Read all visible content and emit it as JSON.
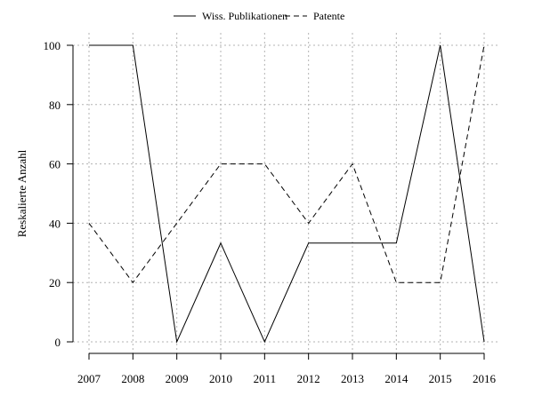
{
  "chart_data": {
    "type": "line",
    "title": "",
    "xlabel": "",
    "ylabel": "Reskalierte Anzahl",
    "categories": [
      "2007",
      "2008",
      "2009",
      "2010",
      "2011",
      "2012",
      "2013",
      "2014",
      "2015",
      "2016"
    ],
    "yticks": [
      "0",
      "20",
      "40",
      "60",
      "80",
      "100"
    ],
    "ylim": [
      0,
      100
    ],
    "grid": true,
    "legend_position": "top",
    "series": [
      {
        "name": "Wiss. Publikationen",
        "style": "solid",
        "color": "#000000",
        "values": [
          100,
          100,
          0,
          33.3,
          0,
          33.3,
          33.3,
          33.3,
          100,
          0
        ]
      },
      {
        "name": "Patente",
        "style": "dashed",
        "color": "#000000",
        "values": [
          40,
          20,
          40,
          60,
          60,
          40,
          60,
          20,
          20,
          100
        ]
      }
    ]
  }
}
